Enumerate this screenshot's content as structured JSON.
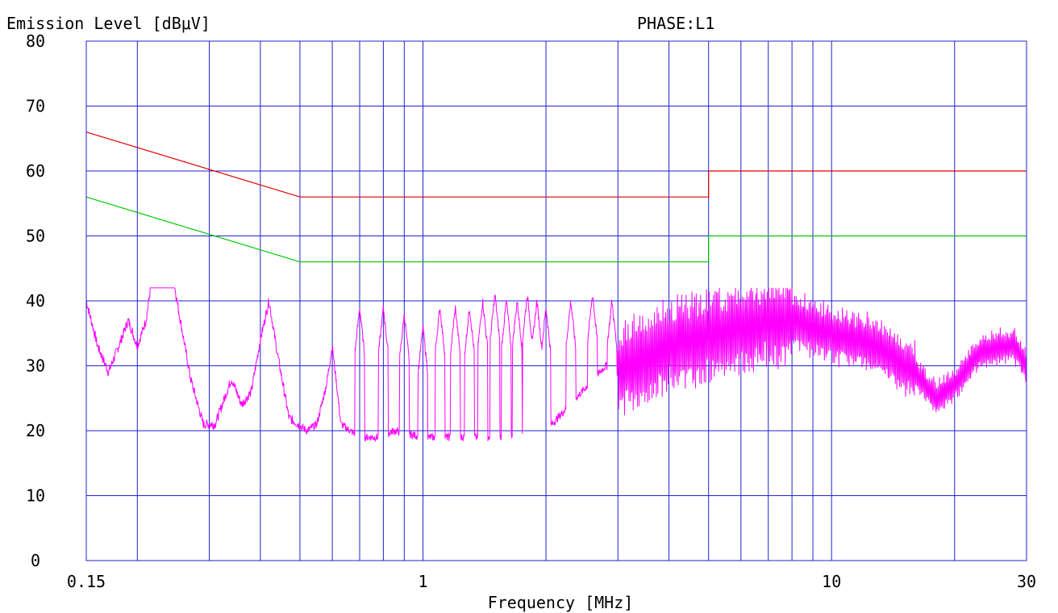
{
  "chart_data": {
    "type": "line",
    "title": "PHASE:L1",
    "ylabel": "Emission Level [dBμV]",
    "xlabel": "Frequency [MHz]",
    "x_scale": "log",
    "xlim": [
      0.15,
      30
    ],
    "ylim": [
      0,
      80
    ],
    "y_ticks": [
      0,
      10,
      20,
      30,
      40,
      50,
      60,
      70,
      80
    ],
    "x_tick_labels": [
      {
        "value": 0.15,
        "label": "0.15"
      },
      {
        "value": 1,
        "label": "1"
      },
      {
        "value": 10,
        "label": "10"
      },
      {
        "value": 30,
        "label": "30"
      }
    ],
    "x_gridlines": [
      0.15,
      0.2,
      0.3,
      0.4,
      0.5,
      0.6,
      0.7,
      0.8,
      0.9,
      1,
      2,
      3,
      4,
      5,
      6,
      7,
      8,
      9,
      10,
      20,
      30
    ],
    "grid": true,
    "colors": {
      "grid": "#2222cc",
      "qp_limit": "#e00000",
      "avg_limit": "#00c800",
      "measurement": "#ff00ff"
    },
    "series": [
      {
        "key": "qp_limit",
        "points": [
          [
            0.15,
            66
          ],
          [
            0.5,
            56
          ],
          [
            5,
            56
          ],
          [
            5,
            60
          ],
          [
            30,
            60
          ]
        ]
      },
      {
        "key": "avg_limit",
        "points": [
          [
            0.15,
            56
          ],
          [
            0.5,
            46
          ],
          [
            5,
            46
          ],
          [
            5,
            50
          ],
          [
            30,
            50
          ]
        ]
      },
      {
        "key": "measurement",
        "anchors": [
          [
            0.15,
            40
          ],
          [
            0.16,
            33
          ],
          [
            0.17,
            29
          ],
          [
            0.18,
            33
          ],
          [
            0.19,
            37
          ],
          [
            0.2,
            33
          ],
          [
            0.21,
            37
          ],
          [
            0.22,
            46
          ],
          [
            0.23,
            49
          ],
          [
            0.24,
            47
          ],
          [
            0.25,
            40
          ],
          [
            0.27,
            28
          ],
          [
            0.29,
            21
          ],
          [
            0.31,
            21
          ],
          [
            0.34,
            28
          ],
          [
            0.36,
            24
          ],
          [
            0.38,
            26
          ],
          [
            0.4,
            34
          ],
          [
            0.42,
            40
          ],
          [
            0.44,
            32
          ],
          [
            0.47,
            22
          ],
          [
            0.52,
            20
          ],
          [
            0.55,
            21
          ],
          [
            0.58,
            27
          ],
          [
            0.6,
            33
          ],
          [
            0.63,
            21
          ],
          [
            0.7,
            19
          ],
          [
            0.78,
            19
          ],
          [
            0.85,
            20
          ],
          [
            1.0,
            19
          ],
          [
            1.5,
            19
          ],
          [
            2.0,
            20
          ],
          [
            2.8,
            30
          ],
          [
            3.0,
            29
          ],
          [
            4.0,
            33
          ],
          [
            6.0,
            36
          ],
          [
            8.0,
            37
          ],
          [
            10.0,
            35
          ],
          [
            13.0,
            33
          ],
          [
            16.0,
            29
          ],
          [
            18.0,
            25
          ],
          [
            20.0,
            27
          ],
          [
            23.0,
            32
          ],
          [
            26.0,
            33
          ],
          [
            28.0,
            33
          ],
          [
            30.0,
            30
          ]
        ],
        "peaks": [
          [
            0.6,
            30
          ],
          [
            0.7,
            39
          ],
          [
            0.8,
            39
          ],
          [
            0.9,
            38
          ],
          [
            1.0,
            36
          ],
          [
            1.1,
            39
          ],
          [
            1.2,
            39
          ],
          [
            1.3,
            39
          ],
          [
            1.4,
            40
          ],
          [
            1.5,
            41
          ],
          [
            1.6,
            40
          ],
          [
            1.7,
            40
          ],
          [
            1.8,
            41
          ],
          [
            1.9,
            40
          ],
          [
            2.0,
            39
          ],
          [
            2.3,
            40
          ],
          [
            2.6,
            41
          ],
          [
            2.9,
            40
          ]
        ]
      }
    ]
  }
}
